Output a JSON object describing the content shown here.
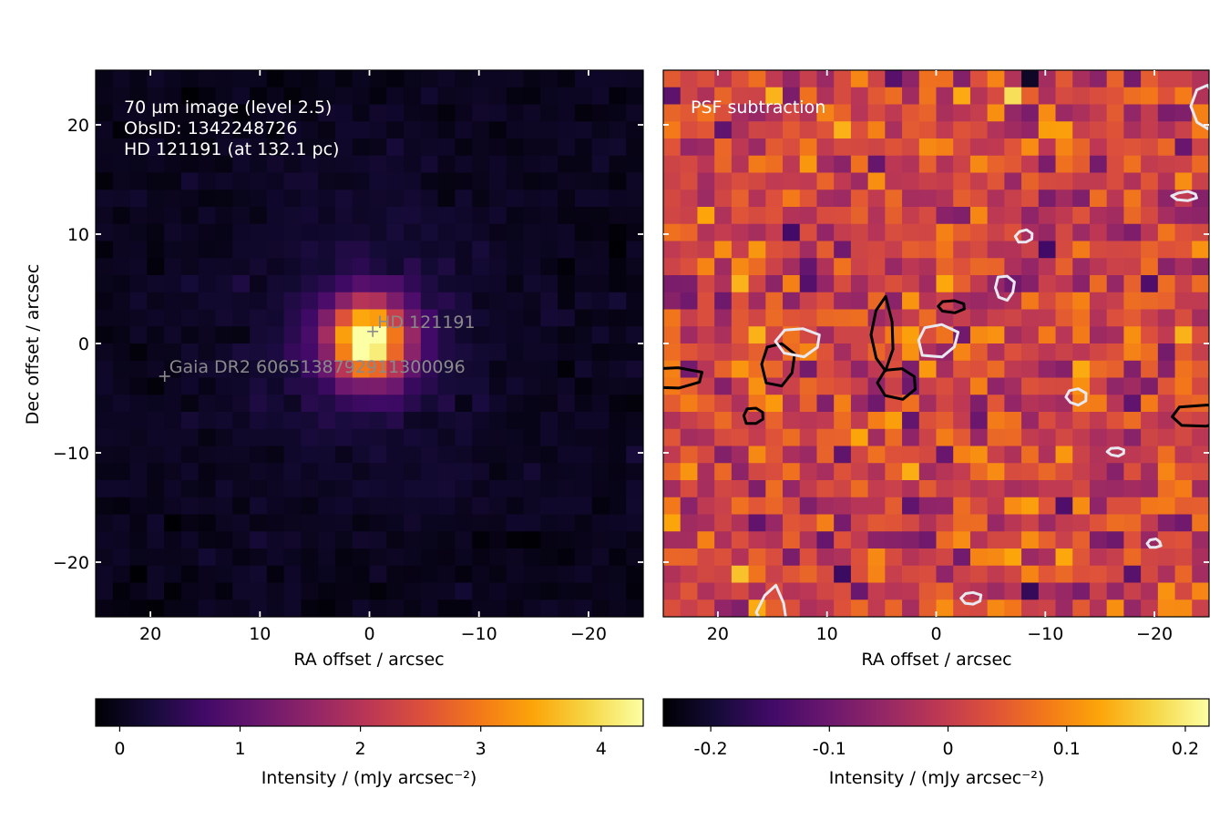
{
  "chart_data": [
    {
      "type": "heatmap",
      "panel": "left",
      "colormap": "inferno",
      "xlabel": "RA offset / arcsec",
      "ylabel": "Dec offset / arcsec",
      "xlim": [
        25,
        -25
      ],
      "ylim": [
        -25,
        25
      ],
      "xticks": [
        20,
        10,
        0,
        -10,
        -20
      ],
      "xtick_labels": [
        "20",
        "10",
        "0",
        "−10",
        "−20"
      ],
      "yticks": [
        20,
        10,
        0,
        -10,
        -20
      ],
      "ytick_labels": [
        "20",
        "10",
        "0",
        "−10",
        "−20"
      ],
      "annotation_lines": [
        "70 µm image (level 2.5)",
        "ObsID: 1342248726",
        "HD 121191 (at 132.1 pc)"
      ],
      "sources": [
        {
          "label": "HD 121191",
          "ra": -0.3,
          "dec": 1.1
        },
        {
          "label": "Gaia DR2 6065138792911300096",
          "ra": 18.7,
          "dec": -3.0
        }
      ],
      "peak": {
        "ra": 0.2,
        "dec": 0.3,
        "intensity": 4.35
      },
      "colorbar": {
        "label": "Intensity / (mJy arcsec⁻²)",
        "range": [
          -0.2,
          4.35
        ],
        "ticks": [
          0,
          1,
          2,
          3,
          4
        ],
        "tick_labels": [
          "0",
          "1",
          "2",
          "3",
          "4"
        ]
      }
    },
    {
      "type": "heatmap",
      "panel": "right",
      "colormap": "inferno",
      "xlabel": "RA offset / arcsec",
      "xlim": [
        25,
        -25
      ],
      "ylim": [
        -25,
        25
      ],
      "xticks": [
        20,
        10,
        0,
        -10,
        -20
      ],
      "xtick_labels": [
        "20",
        "10",
        "0",
        "−10",
        "−20"
      ],
      "annotation_lines": [
        "PSF subtraction"
      ],
      "contour_levels": {
        "positive": "black",
        "negative": "white"
      },
      "colorbar": {
        "label": "Intensity / (mJy arcsec⁻²)",
        "range": [
          -0.24,
          0.22
        ],
        "ticks": [
          -0.2,
          -0.1,
          0,
          0.1,
          0.2
        ],
        "tick_labels": [
          "-0.2",
          "-0.1",
          "0",
          "0.1",
          "0.2"
        ]
      }
    }
  ],
  "colors": {
    "annotation_text": "#ffffff",
    "source_marker": "#8a8a8a",
    "positive_contour": "#000000",
    "negative_contour": "#e8e8f0"
  }
}
